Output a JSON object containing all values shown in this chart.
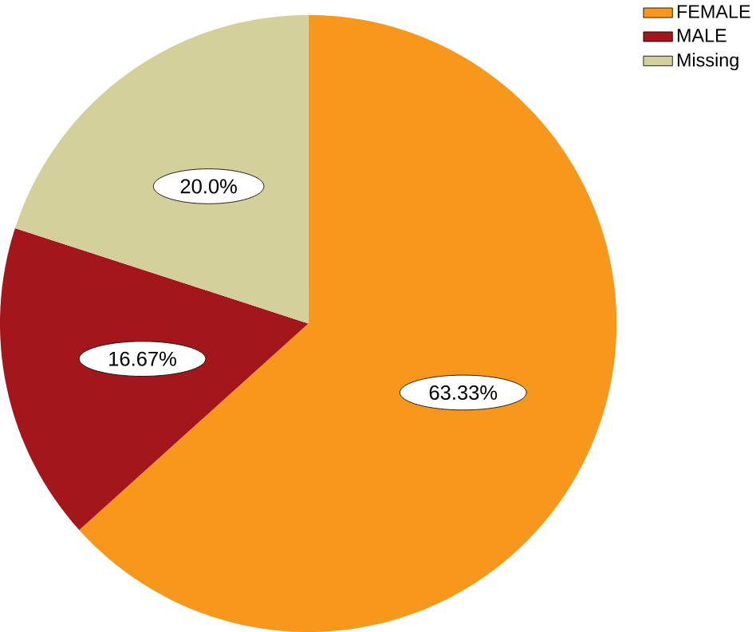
{
  "chart_data": {
    "type": "pie",
    "categories": [
      "FEMALE",
      "MALE",
      "Missing"
    ],
    "values": [
      63.33,
      16.67,
      20.0
    ],
    "colors": [
      "#f7981d",
      "#a3161b",
      "#d4d09c"
    ],
    "value_labels": [
      "63.33%",
      "16.67%",
      "20.0%"
    ],
    "legend": "top right"
  }
}
